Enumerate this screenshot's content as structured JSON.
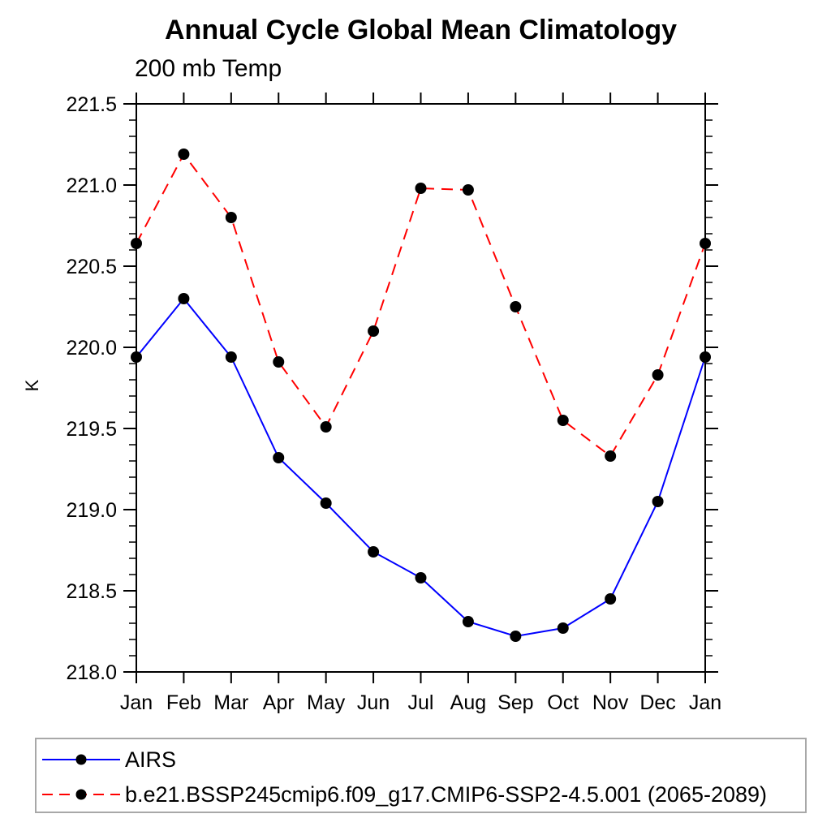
{
  "chart_data": {
    "type": "line",
    "title": "Annual Cycle Global Mean Climatology",
    "subtitle": "200 mb Temp",
    "ylabel": "K",
    "xlabel": "",
    "categories": [
      "Jan",
      "Feb",
      "Mar",
      "Apr",
      "May",
      "Jun",
      "Jul",
      "Aug",
      "Sep",
      "Oct",
      "Nov",
      "Dec",
      "Jan"
    ],
    "ylim": [
      218.0,
      221.5
    ],
    "ytick_major": 0.5,
    "ytick_minor": 0.1,
    "grid": "off",
    "legend_position": "bottom-left-box",
    "axis_color": "#000000",
    "marker_color": "#000000",
    "series": [
      {
        "name": "AIRS",
        "color": "#0000ff",
        "line_style": "solid",
        "marker": "circle",
        "values": [
          219.94,
          220.3,
          219.94,
          219.32,
          219.04,
          218.74,
          218.58,
          218.31,
          218.22,
          218.27,
          218.45,
          219.05,
          219.94
        ]
      },
      {
        "name": "b.e21.BSSP245cmip6.f09_g17.CMIP6-SSP2-4.5.001 (2065-2089)",
        "color": "#ff0000",
        "line_style": "dashed",
        "marker": "circle",
        "values": [
          220.64,
          221.19,
          220.8,
          219.91,
          219.51,
          220.1,
          220.98,
          220.97,
          220.25,
          219.55,
          219.33,
          219.83,
          220.64
        ]
      }
    ]
  }
}
